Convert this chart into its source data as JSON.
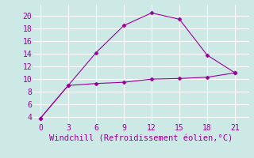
{
  "line1_x": [
    0,
    3,
    6,
    9,
    12,
    15,
    18,
    21
  ],
  "line1_y": [
    3.8,
    9.0,
    14.2,
    18.5,
    20.5,
    19.5,
    13.8,
    11.0
  ],
  "line2_x": [
    0,
    3,
    6,
    9,
    12,
    15,
    18,
    21
  ],
  "line2_y": [
    3.8,
    9.0,
    9.3,
    9.5,
    10.0,
    10.1,
    10.3,
    11.0
  ],
  "line_color": "#990099",
  "bg_color": "#cce9e5",
  "grid_color": "#ffffff",
  "xlabel": "Windchill (Refroidissement éolien,°C)",
  "xlabel_color": "#990099",
  "xlabel_fontsize": 7.5,
  "xticks": [
    0,
    3,
    6,
    9,
    12,
    15,
    18,
    21
  ],
  "yticks": [
    4,
    6,
    8,
    10,
    12,
    14,
    16,
    18,
    20
  ],
  "xlim": [
    -0.8,
    22.5
  ],
  "ylim": [
    3.0,
    21.8
  ],
  "tick_fontsize": 7,
  "marker": "D",
  "marker_size": 2.5,
  "linewidth": 0.8
}
